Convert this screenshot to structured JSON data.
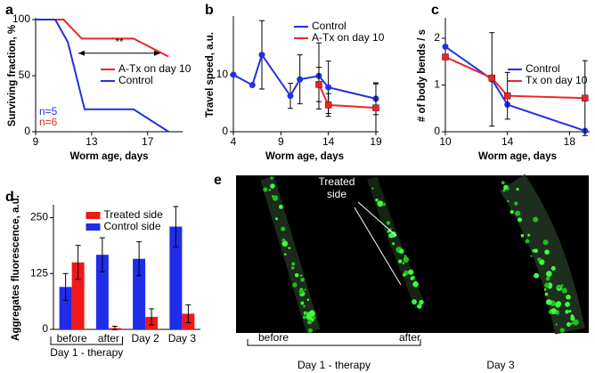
{
  "chart_data": [
    {
      "panel": "a",
      "type": "line",
      "x_label": "Worm age, days",
      "y_label": "Surviving fraction, %",
      "xlim": [
        9,
        19.5
      ],
      "xticks": [
        9,
        13,
        17
      ],
      "ylim": [
        0,
        100
      ],
      "yticks": [
        0,
        50,
        100
      ],
      "legend": "center right",
      "series": [
        {
          "name": "A-Tx on day 10",
          "color": "#e8262a",
          "x": [
            9,
            11,
            12.3,
            16,
            18.5
          ],
          "values": [
            100,
            100,
            83,
            83,
            67
          ]
        },
        {
          "name": "Control",
          "color": "#2430e0",
          "x": [
            9,
            10.4,
            11.3,
            12.5,
            16,
            18.5
          ],
          "values": [
            100,
            100,
            80,
            20,
            20,
            0
          ]
        }
      ],
      "annotations": [
        "**",
        "n=5",
        "n=6"
      ]
    },
    {
      "panel": "b",
      "type": "line",
      "x_label": "Worm age, days",
      "y_label": "Travel speed, a.u.",
      "xlim": [
        4,
        19
      ],
      "xticks": [
        4,
        9,
        14,
        19
      ],
      "ylim": [
        0,
        20
      ],
      "yticks": [
        0,
        10
      ],
      "legend": "upper right",
      "series": [
        {
          "name": "Control",
          "color": "#2430e0",
          "marker": "circle",
          "x": [
            4,
            6,
            7,
            10,
            11,
            13,
            14,
            19
          ],
          "values": [
            10,
            8.2,
            13.5,
            6.3,
            9.2,
            9.8,
            7.8,
            5.8
          ],
          "errors": [
            0,
            0,
            6,
            2.2,
            4.3,
            5.8,
            4.6,
            2.8
          ]
        },
        {
          "name": "A-Tx on day 10",
          "color": "#e8262a",
          "marker": "square",
          "x": [
            13,
            14,
            19
          ],
          "values": [
            8.3,
            4.7,
            4.2
          ],
          "errors": [
            3,
            2,
            4.2
          ]
        }
      ]
    },
    {
      "panel": "c",
      "type": "line",
      "x_label": "Worm age, days",
      "y_label": "# of body bends / s",
      "xlim": [
        10,
        19.3
      ],
      "xticks": [
        10,
        14,
        18
      ],
      "ylim": [
        0,
        2.4
      ],
      "yticks": [
        0,
        1,
        2
      ],
      "legend": "center right",
      "series": [
        {
          "name": "Control",
          "color": "#2430e0",
          "marker": "circle",
          "x": [
            10,
            13,
            14,
            19
          ],
          "values": [
            1.82,
            1.12,
            0.58,
            0.02
          ],
          "errors": [
            0,
            1,
            0,
            0
          ]
        },
        {
          "name": "Tx on day 10",
          "color": "#e8262a",
          "marker": "square",
          "x": [
            10,
            13,
            14,
            19
          ],
          "values": [
            1.6,
            1.15,
            0.77,
            0.72
          ],
          "errors": [
            0,
            0,
            0.5,
            0.8
          ]
        }
      ]
    },
    {
      "panel": "d",
      "type": "bar",
      "y_label": "Aggregates fluorescence, a.u.",
      "categories": [
        "before",
        "after",
        "Day 2",
        "Day 3"
      ],
      "group_label": "Day 1 - therapy",
      "ylim": [
        0,
        275
      ],
      "yticks": [
        0,
        125,
        250
      ],
      "legend": "upper center",
      "series": [
        {
          "name": "Treated side",
          "color": "#f01818",
          "values": [
            150,
            3,
            28,
            35
          ],
          "errors": [
            38,
            4,
            18,
            20
          ]
        },
        {
          "name": "Control side",
          "color": "#1f2de8",
          "values": [
            95,
            167,
            158,
            230
          ],
          "errors": [
            30,
            38,
            38,
            45
          ]
        }
      ]
    }
  ],
  "image_panel": {
    "panel": "e",
    "annotation": [
      "Treated",
      "side"
    ],
    "labels": [
      "before",
      "after"
    ],
    "group_label": "Day 1 - therapy",
    "day_label": "Day 3"
  }
}
